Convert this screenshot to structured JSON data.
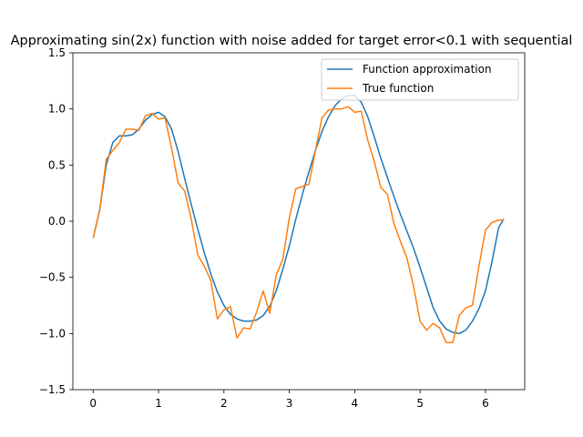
{
  "chart_data": {
    "type": "line",
    "title": "Approximating sin(2x) function with noise added for target error<0.1 with sequential",
    "xlabel": "",
    "ylabel": "",
    "xlim": [
      -0.31,
      6.6
    ],
    "ylim": [
      -1.5,
      1.5
    ],
    "xticks": [
      "0",
      "1",
      "2",
      "3",
      "4",
      "5",
      "6"
    ],
    "yticks": [
      "−1.5",
      "−1.0",
      "−0.5",
      "0.0",
      "0.5",
      "1.0",
      "1.5"
    ],
    "grid": false,
    "legend_position": "upper right",
    "series": [
      {
        "name": "Function approximation",
        "color": "#1f77b4",
        "points": [
          [
            0.0,
            -0.15
          ],
          [
            0.1,
            0.1
          ],
          [
            0.2,
            0.5
          ],
          [
            0.3,
            0.7
          ],
          [
            0.4,
            0.76
          ],
          [
            0.5,
            0.76
          ],
          [
            0.6,
            0.77
          ],
          [
            0.7,
            0.82
          ],
          [
            0.8,
            0.9
          ],
          [
            0.9,
            0.95
          ],
          [
            1.0,
            0.97
          ],
          [
            1.1,
            0.93
          ],
          [
            1.2,
            0.82
          ],
          [
            1.3,
            0.62
          ],
          [
            1.4,
            0.38
          ],
          [
            1.5,
            0.15
          ],
          [
            1.6,
            -0.07
          ],
          [
            1.7,
            -0.28
          ],
          [
            1.8,
            -0.47
          ],
          [
            1.9,
            -0.63
          ],
          [
            2.0,
            -0.75
          ],
          [
            2.1,
            -0.83
          ],
          [
            2.2,
            -0.87
          ],
          [
            2.3,
            -0.89
          ],
          [
            2.4,
            -0.89
          ],
          [
            2.5,
            -0.88
          ],
          [
            2.6,
            -0.84
          ],
          [
            2.7,
            -0.76
          ],
          [
            2.8,
            -0.62
          ],
          [
            2.9,
            -0.43
          ],
          [
            3.0,
            -0.22
          ],
          [
            3.1,
            0.02
          ],
          [
            3.2,
            0.24
          ],
          [
            3.3,
            0.44
          ],
          [
            3.4,
            0.63
          ],
          [
            3.5,
            0.8
          ],
          [
            3.6,
            0.93
          ],
          [
            3.7,
            1.03
          ],
          [
            3.8,
            1.09
          ],
          [
            3.9,
            1.12
          ],
          [
            4.0,
            1.12
          ],
          [
            4.1,
            1.06
          ],
          [
            4.2,
            0.93
          ],
          [
            4.3,
            0.75
          ],
          [
            4.4,
            0.56
          ],
          [
            4.5,
            0.39
          ],
          [
            4.6,
            0.22
          ],
          [
            4.7,
            0.06
          ],
          [
            4.8,
            -0.09
          ],
          [
            4.9,
            -0.24
          ],
          [
            5.0,
            -0.41
          ],
          [
            5.1,
            -0.59
          ],
          [
            5.2,
            -0.77
          ],
          [
            5.3,
            -0.89
          ],
          [
            5.4,
            -0.96
          ],
          [
            5.5,
            -0.99
          ],
          [
            5.6,
            -1.0
          ],
          [
            5.7,
            -0.97
          ],
          [
            5.8,
            -0.89
          ],
          [
            5.9,
            -0.78
          ],
          [
            6.0,
            -0.62
          ],
          [
            6.1,
            -0.36
          ],
          [
            6.2,
            -0.06
          ],
          [
            6.28,
            0.02
          ]
        ]
      },
      {
        "name": "True function",
        "color": "#ff7f0e",
        "points": [
          [
            0.0,
            -0.15
          ],
          [
            0.1,
            0.1
          ],
          [
            0.2,
            0.55
          ],
          [
            0.3,
            0.63
          ],
          [
            0.4,
            0.7
          ],
          [
            0.5,
            0.82
          ],
          [
            0.6,
            0.82
          ],
          [
            0.7,
            0.81
          ],
          [
            0.8,
            0.94
          ],
          [
            0.9,
            0.96
          ],
          [
            1.0,
            0.91
          ],
          [
            1.1,
            0.92
          ],
          [
            1.2,
            0.65
          ],
          [
            1.3,
            0.34
          ],
          [
            1.4,
            0.27
          ],
          [
            1.5,
            0.02
          ],
          [
            1.6,
            -0.3
          ],
          [
            1.7,
            -0.4
          ],
          [
            1.8,
            -0.53
          ],
          [
            1.9,
            -0.87
          ],
          [
            2.0,
            -0.79
          ],
          [
            2.1,
            -0.76
          ],
          [
            2.2,
            -1.04
          ],
          [
            2.3,
            -0.95
          ],
          [
            2.4,
            -0.96
          ],
          [
            2.5,
            -0.81
          ],
          [
            2.6,
            -0.62
          ],
          [
            2.7,
            -0.82
          ],
          [
            2.8,
            -0.48
          ],
          [
            2.9,
            -0.34
          ],
          [
            3.0,
            0.03
          ],
          [
            3.1,
            0.29
          ],
          [
            3.2,
            0.31
          ],
          [
            3.3,
            0.33
          ],
          [
            3.4,
            0.63
          ],
          [
            3.5,
            0.92
          ],
          [
            3.6,
            0.99
          ],
          [
            3.7,
            1.0
          ],
          [
            3.8,
            1.0
          ],
          [
            3.9,
            1.02
          ],
          [
            4.0,
            0.97
          ],
          [
            4.1,
            0.98
          ],
          [
            4.2,
            0.72
          ],
          [
            4.3,
            0.53
          ],
          [
            4.4,
            0.3
          ],
          [
            4.5,
            0.24
          ],
          [
            4.6,
            -0.02
          ],
          [
            4.7,
            -0.18
          ],
          [
            4.8,
            -0.33
          ],
          [
            4.9,
            -0.58
          ],
          [
            5.0,
            -0.89
          ],
          [
            5.1,
            -0.97
          ],
          [
            5.2,
            -0.91
          ],
          [
            5.3,
            -0.95
          ],
          [
            5.4,
            -1.08
          ],
          [
            5.5,
            -1.08
          ],
          [
            5.6,
            -0.84
          ],
          [
            5.7,
            -0.77
          ],
          [
            5.8,
            -0.75
          ],
          [
            5.9,
            -0.4
          ],
          [
            6.0,
            -0.08
          ],
          [
            6.1,
            -0.01
          ],
          [
            6.2,
            0.01
          ],
          [
            6.28,
            0.01
          ]
        ]
      }
    ]
  }
}
